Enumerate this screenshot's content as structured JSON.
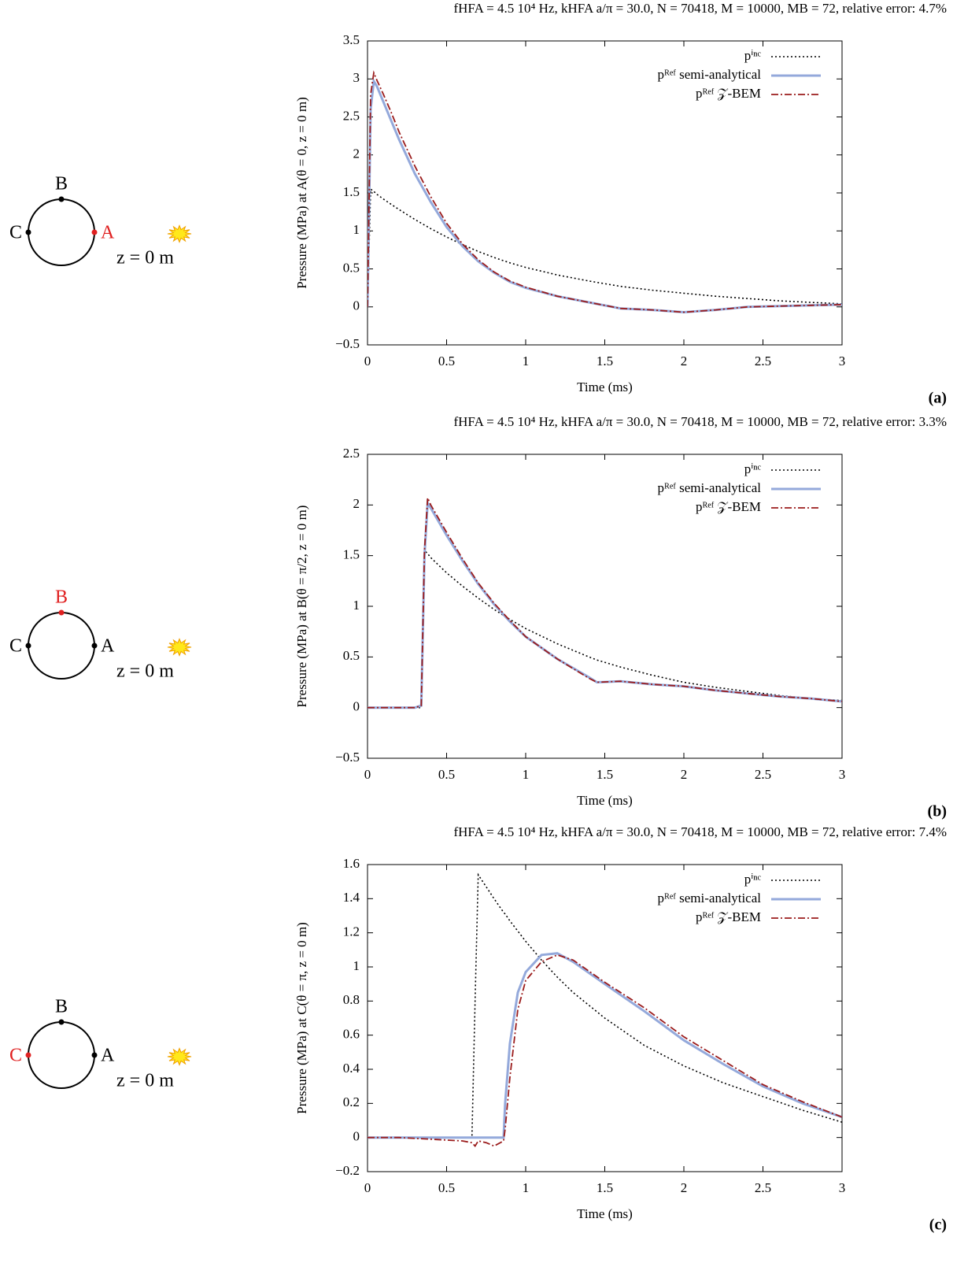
{
  "chart_data": [
    {
      "type": "line",
      "title": "fHFA = 4.5 10⁴ Hz, kHFA a/π = 30.0, N = 70418, M = 10000, MB = 72, relative error: 4.7%",
      "x_label": "Time (ms)",
      "y_label": "Pressure (MPa) at A(θ = 0, z = 0 m)",
      "panel_label": "(a)",
      "legend": "upper right",
      "x": [
        0,
        0.02,
        0.04,
        0.06,
        0.1,
        0.15,
        0.2,
        0.3,
        0.4,
        0.5,
        0.6,
        0.7,
        0.8,
        0.9,
        1.0,
        1.2,
        1.4,
        1.6,
        1.8,
        2.0,
        2.2,
        2.4,
        2.6,
        2.8,
        3.0
      ],
      "series": [
        {
          "name": "pⁱⁿᶜ",
          "color": "#000000",
          "dash": "dotted",
          "values": [
            0,
            1.55,
            1.52,
            1.48,
            1.42,
            1.35,
            1.28,
            1.15,
            1.03,
            0.92,
            0.82,
            0.73,
            0.65,
            0.58,
            0.52,
            0.42,
            0.34,
            0.27,
            0.22,
            0.18,
            0.14,
            0.11,
            0.08,
            0.06,
            0.04
          ]
        },
        {
          "name": "pᴿᵉᶠ semi-analytical",
          "color": "#94a9db",
          "dash": "solid",
          "values": [
            0,
            2.6,
            2.97,
            2.9,
            2.7,
            2.45,
            2.2,
            1.75,
            1.38,
            1.05,
            0.8,
            0.6,
            0.45,
            0.33,
            0.25,
            0.14,
            0.06,
            -0.02,
            -0.04,
            -0.07,
            -0.04,
            0.0,
            0.01,
            0.02,
            0.03
          ]
        },
        {
          "name": "pᴿᵉᶠ 𝒵-BEM",
          "color": "#9b1c1c",
          "dash": "dashdot",
          "values": [
            0,
            2.8,
            3.08,
            2.98,
            2.8,
            2.56,
            2.3,
            1.85,
            1.45,
            1.1,
            0.83,
            0.62,
            0.46,
            0.34,
            0.26,
            0.14,
            0.06,
            -0.02,
            -0.04,
            -0.07,
            -0.04,
            0.0,
            0.01,
            0.02,
            0.03
          ]
        }
      ],
      "xlim": [
        0,
        3
      ],
      "xticks": [
        0,
        0.5,
        1,
        1.5,
        2,
        2.5,
        3
      ],
      "ylim": [
        -0.5,
        3.5
      ],
      "yticks": [
        {
          "value": -0.5,
          "label": "−0.5"
        },
        0,
        0.5,
        1,
        1.5,
        2,
        2.5,
        3,
        3.5
      ]
    },
    {
      "type": "line",
      "title": "fHFA = 4.5 10⁴ Hz, kHFA a/π = 30.0, N = 70418, M = 10000, MB = 72, relative error: 3.3%",
      "x_label": "Time (ms)",
      "y_label": "Pressure (MPa) at B(θ = π/2, z = 0 m)",
      "panel_label": "(b)",
      "legend": "upper right",
      "x": [
        0,
        0.1,
        0.2,
        0.3,
        0.34,
        0.36,
        0.38,
        0.4,
        0.5,
        0.6,
        0.7,
        0.8,
        0.9,
        1.0,
        1.2,
        1.4,
        1.45,
        1.6,
        1.8,
        2.0,
        2.2,
        2.4,
        2.6,
        2.8,
        3.0
      ],
      "series": [
        {
          "name": "pⁱⁿᶜ",
          "color": "#000000",
          "dash": "dotted",
          "values": [
            0,
            0,
            0,
            0,
            0,
            1.55,
            1.52,
            1.48,
            1.33,
            1.2,
            1.08,
            0.97,
            0.87,
            0.78,
            0.63,
            0.5,
            0.47,
            0.4,
            0.32,
            0.25,
            0.2,
            0.16,
            0.12,
            0.09,
            0.07
          ]
        },
        {
          "name": "pᴿᵉᶠ semi-analytical",
          "color": "#94a9db",
          "dash": "solid",
          "values": [
            0,
            0,
            0,
            0,
            0.02,
            1.5,
            2.02,
            1.97,
            1.7,
            1.45,
            1.22,
            1.02,
            0.85,
            0.7,
            0.48,
            0.3,
            0.25,
            0.26,
            0.23,
            0.21,
            0.17,
            0.14,
            0.11,
            0.09,
            0.06
          ]
        },
        {
          "name": "pᴿᵉᶠ 𝒵-BEM",
          "color": "#9b1c1c",
          "dash": "dashdot",
          "values": [
            0,
            0,
            0,
            0,
            0.02,
            1.55,
            2.07,
            2.0,
            1.73,
            1.47,
            1.23,
            1.03,
            0.86,
            0.7,
            0.48,
            0.29,
            0.25,
            0.26,
            0.23,
            0.21,
            0.17,
            0.14,
            0.11,
            0.09,
            0.06
          ]
        }
      ],
      "xlim": [
        0,
        3
      ],
      "xticks": [
        0,
        0.5,
        1,
        1.5,
        2,
        2.5,
        3
      ],
      "ylim": [
        -0.5,
        2.5
      ],
      "yticks": [
        {
          "value": -0.5,
          "label": "−0.5"
        },
        0,
        0.5,
        1,
        1.5,
        2,
        2.5
      ]
    },
    {
      "type": "line",
      "title": "fHFA = 4.5 10⁴ Hz, kHFA a/π = 30.0, N = 70418, M = 10000, MB = 72, relative error: 7.4%",
      "x_label": "Time (ms)",
      "y_label": "Pressure (MPa) at C(θ = π, z = 0 m)",
      "panel_label": "(c)",
      "legend": "upper right",
      "x": [
        0,
        0.2,
        0.4,
        0.6,
        0.66,
        0.68,
        0.7,
        0.75,
        0.8,
        0.86,
        0.87,
        0.9,
        0.95,
        1.0,
        1.1,
        1.2,
        1.3,
        1.5,
        1.75,
        2.0,
        2.25,
        2.5,
        2.75,
        3.0
      ],
      "series": [
        {
          "name": "pⁱⁿᶜ",
          "color": "#000000",
          "dash": "dotted",
          "values": [
            0,
            0,
            0,
            0,
            0,
            0.8,
            1.54,
            1.47,
            1.4,
            1.32,
            1.31,
            1.27,
            1.21,
            1.15,
            1.04,
            0.94,
            0.85,
            0.7,
            0.54,
            0.42,
            0.32,
            0.24,
            0.16,
            0.09
          ]
        },
        {
          "name": "pᴿᵉᶠ semi-analytical",
          "color": "#94a9db",
          "dash": "solid",
          "values": [
            0,
            0,
            0,
            0,
            0,
            0,
            0,
            0,
            0,
            0,
            0.2,
            0.55,
            0.85,
            0.97,
            1.07,
            1.08,
            1.03,
            0.9,
            0.74,
            0.57,
            0.43,
            0.3,
            0.2,
            0.12
          ]
        },
        {
          "name": "pᴿᵉᶠ 𝒵-BEM",
          "color": "#9b1c1c",
          "dash": "dashdot",
          "values": [
            0,
            0,
            -0.01,
            -0.02,
            -0.03,
            -0.05,
            -0.02,
            -0.03,
            -0.05,
            -0.02,
            0.05,
            0.35,
            0.75,
            0.92,
            1.03,
            1.07,
            1.04,
            0.91,
            0.76,
            0.59,
            0.45,
            0.31,
            0.21,
            0.12
          ]
        }
      ],
      "xlim": [
        0,
        3
      ],
      "xticks": [
        0,
        0.5,
        1,
        1.5,
        2,
        2.5,
        3
      ],
      "ylim": [
        -0.2,
        1.6
      ],
      "yticks": [
        {
          "value": -0.2,
          "label": "−0.2"
        },
        0,
        0.2,
        0.4,
        0.6,
        0.8,
        1,
        1.2,
        1.4,
        1.6
      ]
    }
  ],
  "diagrams": [
    {
      "points": [
        {
          "label": "B",
          "color": "#000000"
        },
        {
          "label": "C",
          "color": "#000000"
        },
        {
          "label": "A",
          "color": "#e02020"
        }
      ],
      "z_label": "z = 0 m"
    },
    {
      "points": [
        {
          "label": "B",
          "color": "#e02020"
        },
        {
          "label": "C",
          "color": "#000000"
        },
        {
          "label": "A",
          "color": "#000000"
        }
      ],
      "z_label": "z = 0 m"
    },
    {
      "points": [
        {
          "label": "B",
          "color": "#000000"
        },
        {
          "label": "C",
          "color": "#e02020"
        },
        {
          "label": "A",
          "color": "#000000"
        }
      ],
      "z_label": "z = 0 m"
    }
  ]
}
